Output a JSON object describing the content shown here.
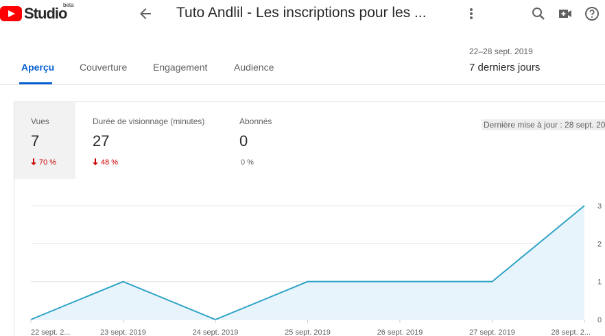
{
  "header": {
    "logo_text": "Studio",
    "logo_badge": "beta",
    "video_title": "Tuto Andlil - Les inscriptions pour les ...",
    "icons": [
      "back-arrow-icon",
      "more-vert-icon",
      "search-icon",
      "video-camera-icon",
      "help-icon"
    ]
  },
  "tabs": [
    {
      "label": "Aperçu",
      "active": true
    },
    {
      "label": "Couverture",
      "active": false
    },
    {
      "label": "Engagement",
      "active": false
    },
    {
      "label": "Audience",
      "active": false
    }
  ],
  "period": {
    "range": "22–28 sept. 2019",
    "label": "7 derniers jours"
  },
  "metrics": [
    {
      "label": "Vues",
      "value": "7",
      "change": "70 %",
      "direction": "down"
    },
    {
      "label": "Durée de visionnage (minutes)",
      "value": "27",
      "change": "48 %",
      "direction": "down"
    },
    {
      "label": "Abonnés",
      "value": "0",
      "change": "0 %",
      "direction": "flat"
    }
  ],
  "last_updated": "Dernière mise à jour : 28 sept. 20",
  "colors": {
    "accent": "#065fd4",
    "down": "#cc0000",
    "line": "#2ea3c7",
    "area": "#e8f4fb",
    "logo_red": "#ff0000"
  },
  "chart_data": {
    "type": "area",
    "x": [
      "22 sept. 2...",
      "23 sept. 2019",
      "24 sept. 2019",
      "25 sept. 2019",
      "26 sept. 2019",
      "27 sept. 2019",
      "28 sept. 2..."
    ],
    "series": [
      {
        "values": [
          0,
          1,
          0,
          1,
          1,
          1,
          3
        ]
      }
    ],
    "yticks": [
      "0",
      "1",
      "2",
      "3"
    ],
    "ylim": [
      0,
      3
    ],
    "grid": true
  }
}
